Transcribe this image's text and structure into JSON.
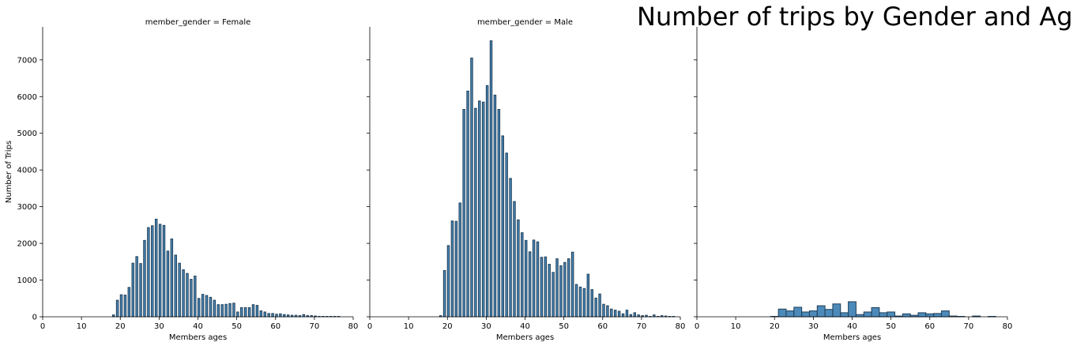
{
  "title": "Number of trips  by Gender and Age",
  "chart_data": [
    {
      "type": "bar",
      "panel_title": "member_gender = Female",
      "xlabel": "Members ages",
      "ylabel": "Number of Trips",
      "xlim": [
        0,
        80
      ],
      "ylim": [
        0,
        7900
      ],
      "xticks": [
        0,
        10,
        20,
        30,
        40,
        50,
        60,
        70,
        80
      ],
      "yticks": [
        0,
        1000,
        2000,
        3000,
        4000,
        5000,
        6000,
        7000
      ],
      "bin_width": 0.5,
      "x": [
        18,
        19,
        20,
        21,
        22,
        23,
        24,
        25,
        26,
        27,
        28,
        29,
        30,
        31,
        32,
        33,
        34,
        35,
        36,
        37,
        38,
        39,
        40,
        41,
        42,
        43,
        44,
        45,
        46,
        47,
        48,
        49,
        50,
        51,
        52,
        53,
        54,
        55,
        56,
        57,
        58,
        59,
        60,
        61,
        62,
        63,
        64,
        65,
        66,
        67,
        68,
        69,
        70,
        71,
        72,
        73,
        74,
        75,
        76
      ],
      "values": [
        50,
        450,
        600,
        590,
        800,
        1460,
        1640,
        1450,
        2080,
        2430,
        2480,
        2660,
        2520,
        2490,
        1790,
        2120,
        1680,
        1460,
        1280,
        1180,
        1020,
        1110,
        500,
        610,
        580,
        530,
        450,
        330,
        330,
        340,
        360,
        370,
        130,
        250,
        250,
        250,
        330,
        310,
        160,
        130,
        90,
        90,
        70,
        80,
        60,
        50,
        40,
        40,
        30,
        60,
        30,
        30,
        20,
        10,
        10,
        10,
        10,
        10,
        10
      ]
    },
    {
      "type": "bar",
      "panel_title": "member_gender = Male",
      "xlabel": "Members ages",
      "xlim": [
        0,
        80
      ],
      "ylim": [
        0,
        7900
      ],
      "xticks": [
        0,
        10,
        20,
        30,
        40,
        50,
        60,
        70,
        80
      ],
      "bin_width": 0.5,
      "x": [
        18,
        19,
        20,
        21,
        22,
        23,
        24,
        25,
        26,
        27,
        28,
        29,
        30,
        31,
        32,
        33,
        34,
        35,
        36,
        37,
        38,
        39,
        40,
        41,
        42,
        43,
        44,
        45,
        46,
        47,
        48,
        49,
        50,
        51,
        52,
        53,
        54,
        55,
        56,
        57,
        58,
        59,
        60,
        61,
        62,
        63,
        64,
        65,
        66,
        67,
        68,
        69,
        70,
        71,
        72,
        73,
        74,
        75,
        76,
        77,
        78
      ],
      "values": [
        30,
        1260,
        1940,
        2610,
        2600,
        3100,
        5650,
        6150,
        7050,
        5680,
        5880,
        5850,
        6300,
        7520,
        6040,
        5650,
        4930,
        4460,
        3770,
        3140,
        2640,
        2290,
        2080,
        1770,
        2090,
        2040,
        1620,
        1630,
        1430,
        1210,
        1580,
        1390,
        1480,
        1580,
        1760,
        880,
        810,
        770,
        1160,
        740,
        510,
        620,
        340,
        300,
        210,
        180,
        150,
        80,
        180,
        60,
        110,
        50,
        30,
        40,
        10,
        50,
        10,
        30,
        20,
        10,
        10
      ]
    },
    {
      "type": "bar",
      "panel_title": "",
      "xlabel": "Members ages",
      "xlim": [
        0,
        80
      ],
      "ylim": [
        0,
        7900
      ],
      "xticks": [
        0,
        10,
        20,
        30,
        40,
        50,
        60,
        70,
        80
      ],
      "bin_width": 2,
      "x": [
        19,
        21,
        23,
        25,
        27,
        29,
        31,
        33,
        35,
        37,
        39,
        41,
        43,
        45,
        47,
        49,
        51,
        53,
        55,
        57,
        59,
        61,
        63,
        65,
        67,
        69,
        71,
        73,
        75
      ],
      "values": [
        10,
        210,
        160,
        260,
        130,
        160,
        300,
        200,
        350,
        110,
        410,
        60,
        130,
        250,
        110,
        130,
        20,
        80,
        40,
        110,
        80,
        90,
        160,
        20,
        10,
        0,
        20,
        0,
        10
      ]
    }
  ]
}
